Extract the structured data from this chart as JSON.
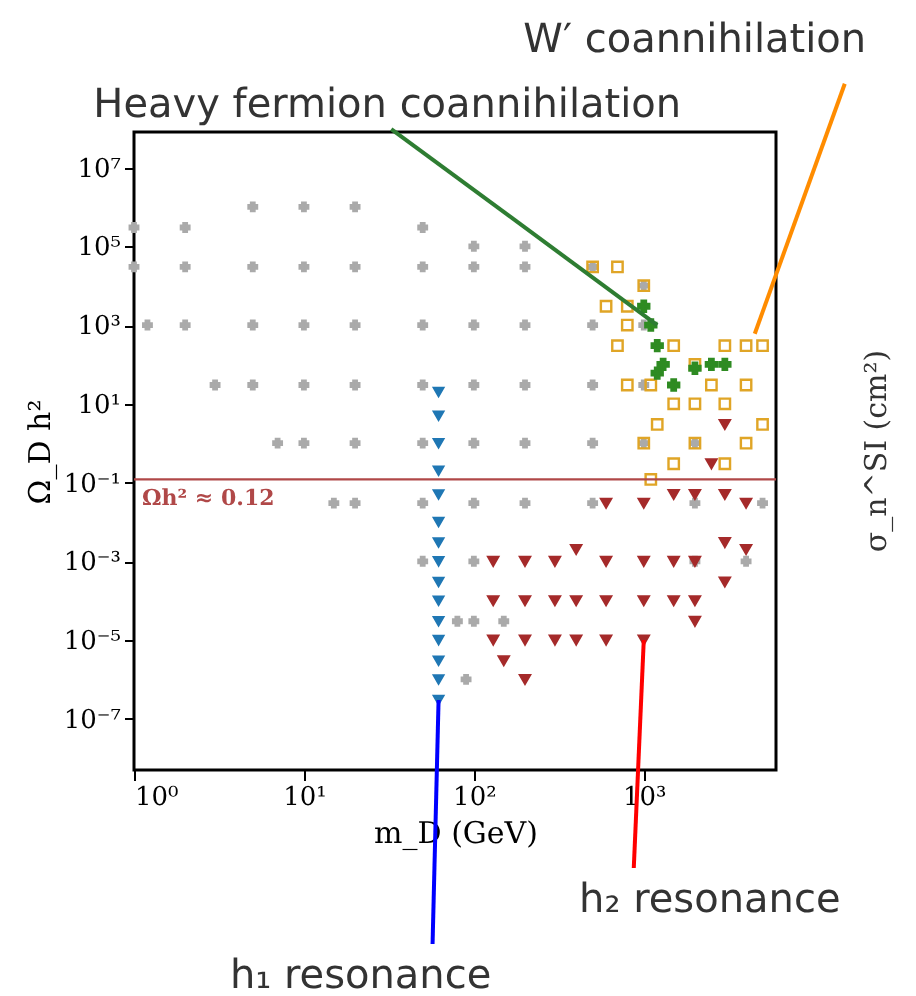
{
  "chart_data": {
    "type": "scatter",
    "log": "xy",
    "grid": false,
    "xlabel": "m_D (GeV)",
    "ylabel": "Ω_D h²",
    "y2label": "σ_n^SI (cm²)",
    "xlim": [
      1,
      6000
    ],
    "ylim": [
      5e-09,
      80000000.0
    ],
    "xticks": [
      {
        "value": 1,
        "label": "10⁰"
      },
      {
        "value": 10,
        "label": "10¹"
      },
      {
        "value": 100,
        "label": "10²"
      },
      {
        "value": 1000,
        "label": "10³"
      }
    ],
    "yticks": [
      {
        "value": 1e-07,
        "label": "10⁻⁷"
      },
      {
        "value": 1e-05,
        "label": "10⁻⁵"
      },
      {
        "value": 0.001,
        "label": "10⁻³"
      },
      {
        "value": 0.1,
        "label": "10⁻¹"
      },
      {
        "value": 10,
        "label": "10¹"
      },
      {
        "value": 1000,
        "label": "10³"
      },
      {
        "value": 100000,
        "label": "10⁵"
      },
      {
        "value": 10000000,
        "label": "10⁷"
      }
    ],
    "ref_lines": [
      {
        "axis": "y",
        "value": 0.12,
        "label": "Ωh² ≈ 0.12",
        "color": "#b04848"
      }
    ],
    "annotations": [
      {
        "text": "Heavy fermion coannihilation",
        "x": 1200,
        "y": 1000
      },
      {
        "text": "W′ coannihilation",
        "x": 4500,
        "y": 600
      },
      {
        "text": "h₁ resonance",
        "x": 62,
        "y": 3e-07
      },
      {
        "text": "h₂ resonance",
        "x": 1000,
        "y": 1e-05
      }
    ],
    "series": [
      {
        "color": "#aaaaaa",
        "marker": "cross",
        "x": [
          1,
          2,
          5,
          10,
          20,
          50,
          100,
          200,
          500,
          1,
          2,
          5,
          10,
          20,
          50,
          100,
          200,
          500,
          1000,
          1.2,
          2,
          5,
          10,
          20,
          50,
          100,
          200,
          500,
          1000,
          3,
          5,
          10,
          20,
          50,
          100,
          200,
          500,
          1000,
          7,
          10,
          20,
          50,
          100,
          200,
          500,
          1000,
          2000,
          15,
          20,
          50,
          100,
          200,
          500,
          2000,
          5000,
          50,
          100,
          2000,
          4000,
          80,
          100,
          150,
          90
        ],
        "values": [
          300000.0,
          300000.0,
          1000000.0,
          1000000.0,
          1000000.0,
          300000.0,
          100000.0,
          100000.0,
          30000.0,
          30000.0,
          30000.0,
          30000.0,
          30000.0,
          30000.0,
          30000.0,
          30000.0,
          30000.0,
          30000.0,
          10000.0,
          1000.0,
          1000.0,
          1000.0,
          1000.0,
          1000.0,
          1000.0,
          1000.0,
          1000.0,
          1000.0,
          1000.0,
          30,
          30,
          30,
          30,
          30,
          30,
          30,
          30,
          30,
          1,
          1,
          1,
          1,
          1,
          1,
          1,
          1,
          1,
          0.03,
          0.03,
          0.03,
          0.03,
          0.03,
          0.03,
          0.03,
          0.03,
          0.001,
          0.001,
          0.001,
          0.001,
          3e-05,
          3e-05,
          3e-05,
          1e-06
        ]
      },
      {
        "color": "#1f77b4",
        "marker": "triangle",
        "x": [
          62,
          62,
          62,
          62,
          62,
          62,
          62,
          62,
          62,
          62,
          62,
          62,
          62,
          62,
          62
        ],
        "values": [
          20,
          5,
          1,
          0.2,
          0.05,
          0.01,
          0.003,
          0.001,
          0.0003,
          0.0001,
          3e-05,
          1e-05,
          3e-06,
          1e-06,
          3e-07
        ]
      },
      {
        "color": "#a52a2a",
        "marker": "triangle",
        "x": [
          130,
          130,
          130,
          150,
          200,
          200,
          200,
          200,
          300,
          300,
          300,
          400,
          400,
          400,
          600,
          600,
          600,
          600,
          1000,
          1000,
          1000,
          1000,
          1500,
          1500,
          1500,
          2000,
          2000,
          2000,
          2000,
          3000,
          3000,
          3000,
          4000,
          4000,
          2500,
          3000
        ],
        "values": [
          0.001,
          0.0001,
          1e-05,
          3e-06,
          0.001,
          0.0001,
          1e-05,
          1e-06,
          0.001,
          0.0001,
          1e-05,
          0.002,
          0.0001,
          1e-05,
          0.03,
          0.001,
          0.0001,
          1e-05,
          0.03,
          0.001,
          0.0001,
          1e-05,
          0.05,
          0.001,
          0.0001,
          0.05,
          0.001,
          0.0001,
          3e-05,
          0.05,
          0.003,
          0.0003,
          0.03,
          0.002,
          0.3,
          3
        ]
      },
      {
        "color": "#e0a526",
        "marker": "square",
        "x": [
          500,
          700,
          1000,
          600,
          800,
          700,
          800,
          800,
          1000,
          1100,
          1200,
          1500,
          1500,
          1500,
          2000,
          2000,
          2000,
          2500,
          3000,
          3000,
          3000,
          4000,
          4000,
          4000,
          5000,
          5000,
          1100
        ],
        "values": [
          30000.0,
          30000.0,
          10000.0,
          3000.0,
          1000.0,
          300,
          30,
          3000.0,
          1,
          30,
          3,
          300,
          10,
          0.3,
          100,
          10,
          1,
          30,
          300,
          10,
          0.3,
          300,
          30,
          1,
          300,
          3,
          0.12
        ]
      },
      {
        "color": "#2e8b22",
        "marker": "cross",
        "x": [
          1000,
          1100,
          1200,
          1300,
          1500,
          2000,
          2500,
          3000,
          1200
        ],
        "values": [
          3000.0,
          1000.0,
          300,
          100,
          30,
          80,
          100,
          100,
          60
        ]
      }
    ]
  }
}
